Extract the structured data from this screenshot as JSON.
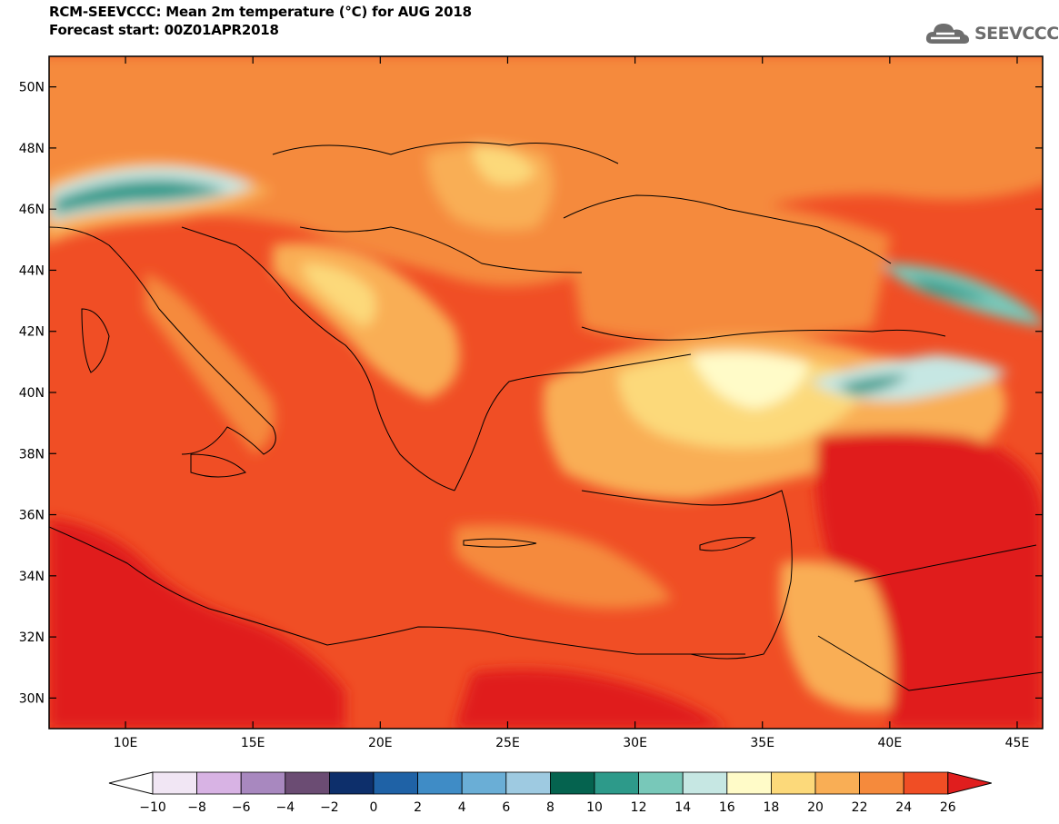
{
  "title": "RCM-SEEVCCC: Mean 2m temperature (°C) for AUG 2018",
  "subtitle": "Forecast start: 00Z01APR2018",
  "logo": {
    "text": "SEEVCCC",
    "icon": "cloud-logo-icon"
  },
  "map": {
    "lon_range": [
      7,
      46
    ],
    "lat_range": [
      29,
      51
    ],
    "lat_ticks": [
      {
        "value": 50,
        "label": "50N"
      },
      {
        "value": 48,
        "label": "48N"
      },
      {
        "value": 46,
        "label": "46N"
      },
      {
        "value": 44,
        "label": "44N"
      },
      {
        "value": 42,
        "label": "42N"
      },
      {
        "value": 40,
        "label": "40N"
      },
      {
        "value": 38,
        "label": "38N"
      },
      {
        "value": 36,
        "label": "36N"
      },
      {
        "value": 34,
        "label": "34N"
      },
      {
        "value": 32,
        "label": "32N"
      },
      {
        "value": 30,
        "label": "30N"
      }
    ],
    "lon_ticks": [
      {
        "value": 10,
        "label": "10E"
      },
      {
        "value": 15,
        "label": "15E"
      },
      {
        "value": 20,
        "label": "20E"
      },
      {
        "value": 25,
        "label": "25E"
      },
      {
        "value": 30,
        "label": "30E"
      },
      {
        "value": 35,
        "label": "35E"
      },
      {
        "value": 40,
        "label": "40E"
      },
      {
        "value": 45,
        "label": "45E"
      }
    ]
  },
  "colorbar": {
    "labels": [
      "−10",
      "−8",
      "−6",
      "−4",
      "−2",
      "0",
      "2",
      "4",
      "6",
      "8",
      "10",
      "12",
      "14",
      "16",
      "18",
      "20",
      "22",
      "24",
      "26"
    ],
    "low_color": "#ffffff",
    "high_color": "#e01e1e",
    "colors": [
      "#f1e6f4",
      "#d8b3e4",
      "#a888bf",
      "#6b4c73",
      "#0d2f6b",
      "#1f62a6",
      "#3f8cc6",
      "#6aaed6",
      "#9ecae1",
      "#05634f",
      "#2d9a8a",
      "#78c8b9",
      "#c6e7e3",
      "#fffbc8",
      "#fcd97a",
      "#f9ae55",
      "#f58a3c",
      "#f04e25"
    ]
  }
}
